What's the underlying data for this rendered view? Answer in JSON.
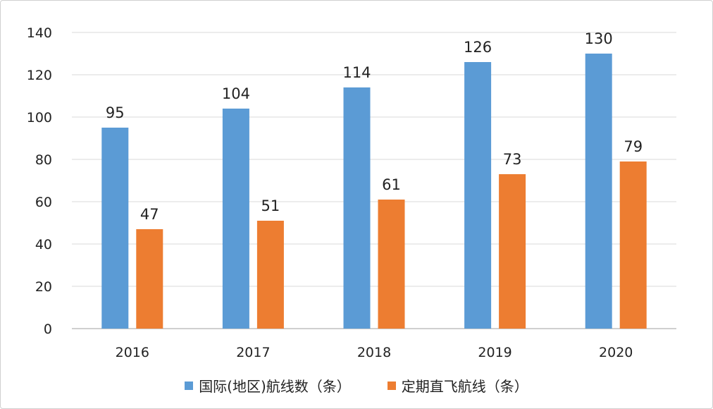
{
  "chart_data": {
    "type": "bar",
    "categories": [
      "2016",
      "2017",
      "2018",
      "2019",
      "2020"
    ],
    "series": [
      {
        "name": "国际(地区)航线数（条）",
        "values": [
          95,
          104,
          114,
          126,
          130
        ],
        "color": "#5b9bd5"
      },
      {
        "name": "定期直飞航线（条）",
        "values": [
          47,
          51,
          61,
          73,
          79
        ],
        "color": "#ed7d31"
      }
    ],
    "y_ticks": [
      "0",
      "20",
      "40",
      "60",
      "80",
      "100",
      "120",
      "140"
    ],
    "ylim": [
      0,
      140
    ],
    "grid": true,
    "legend_position": "bottom",
    "data_labels": true
  }
}
